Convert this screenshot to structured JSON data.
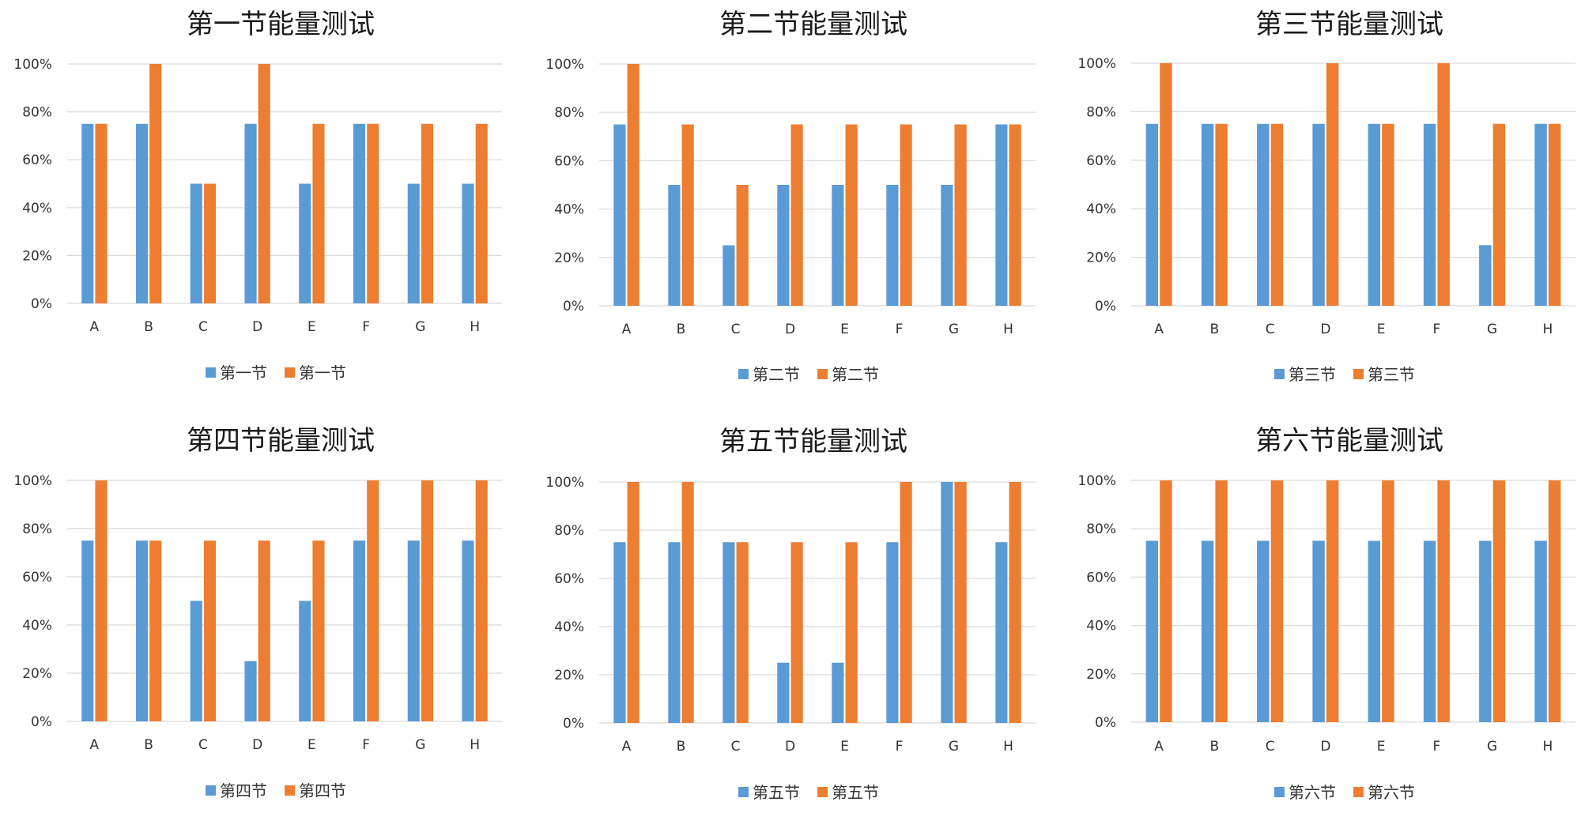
{
  "colors": {
    "series1": "#5B9BD5",
    "series2": "#ED7D31",
    "grid": "#D9D9D9",
    "text": "#333333"
  },
  "chart_data": [
    {
      "type": "bar",
      "title": "第一节能量测试",
      "categories": [
        "A",
        "B",
        "C",
        "D",
        "E",
        "F",
        "G",
        "H"
      ],
      "series": [
        {
          "name": "第一节",
          "values": [
            75,
            75,
            50,
            75,
            50,
            75,
            50,
            50
          ]
        },
        {
          "name": "第一节",
          "values": [
            75,
            100,
            50,
            100,
            75,
            75,
            75,
            75
          ]
        }
      ],
      "ylim": [
        0,
        100
      ],
      "yticks": [
        "0%",
        "20%",
        "40%",
        "60%",
        "80%",
        "100%"
      ],
      "grid": true,
      "legend": "bottom"
    },
    {
      "type": "bar",
      "title": "第二节能量测试",
      "categories": [
        "A",
        "B",
        "C",
        "D",
        "E",
        "F",
        "G",
        "H"
      ],
      "series": [
        {
          "name": "第二节",
          "values": [
            75,
            50,
            25,
            50,
            50,
            50,
            50,
            75
          ]
        },
        {
          "name": "第二节",
          "values": [
            100,
            75,
            50,
            75,
            75,
            75,
            75,
            75
          ]
        }
      ],
      "ylim": [
        0,
        100
      ],
      "yticks": [
        "0%",
        "20%",
        "40%",
        "60%",
        "80%",
        "100%"
      ],
      "grid": true,
      "legend": "bottom"
    },
    {
      "type": "bar",
      "title": "第三节能量测试",
      "categories": [
        "A",
        "B",
        "C",
        "D",
        "E",
        "F",
        "G",
        "H"
      ],
      "series": [
        {
          "name": "第三节",
          "values": [
            75,
            75,
            75,
            75,
            75,
            75,
            25,
            75
          ]
        },
        {
          "name": "第三节",
          "values": [
            100,
            75,
            75,
            100,
            75,
            100,
            75,
            75
          ]
        }
      ],
      "ylim": [
        0,
        100
      ],
      "yticks": [
        "0%",
        "20%",
        "40%",
        "60%",
        "80%",
        "100%"
      ],
      "grid": true,
      "legend": "bottom"
    },
    {
      "type": "bar",
      "title": "第四节能量测试",
      "categories": [
        "A",
        "B",
        "C",
        "D",
        "E",
        "F",
        "G",
        "H"
      ],
      "series": [
        {
          "name": "第四节",
          "values": [
            75,
            75,
            50,
            25,
            50,
            75,
            75,
            75
          ]
        },
        {
          "name": "第四节",
          "values": [
            100,
            75,
            75,
            75,
            75,
            100,
            100,
            100
          ]
        }
      ],
      "ylim": [
        0,
        100
      ],
      "yticks": [
        "0%",
        "20%",
        "40%",
        "60%",
        "80%",
        "100%"
      ],
      "grid": true,
      "legend": "bottom"
    },
    {
      "type": "bar",
      "title": "第五节能量测试",
      "categories": [
        "A",
        "B",
        "C",
        "D",
        "E",
        "F",
        "G",
        "H"
      ],
      "series": [
        {
          "name": "第五节",
          "values": [
            75,
            75,
            75,
            25,
            25,
            75,
            100,
            75
          ]
        },
        {
          "name": "第五节",
          "values": [
            100,
            100,
            75,
            75,
            75,
            100,
            100,
            100
          ]
        }
      ],
      "ylim": [
        0,
        100
      ],
      "yticks": [
        "0%",
        "20%",
        "40%",
        "60%",
        "80%",
        "100%"
      ],
      "grid": true,
      "legend": "bottom"
    },
    {
      "type": "bar",
      "title": "第六节能量测试",
      "categories": [
        "A",
        "B",
        "C",
        "D",
        "E",
        "F",
        "G",
        "H"
      ],
      "series": [
        {
          "name": "第六节",
          "values": [
            75,
            75,
            75,
            75,
            75,
            75,
            75,
            75
          ]
        },
        {
          "name": "第六节",
          "values": [
            100,
            100,
            100,
            100,
            100,
            100,
            100,
            100
          ]
        }
      ],
      "ylim": [
        0,
        100
      ],
      "yticks": [
        "0%",
        "20%",
        "40%",
        "60%",
        "80%",
        "100%"
      ],
      "grid": true,
      "legend": "bottom"
    }
  ]
}
